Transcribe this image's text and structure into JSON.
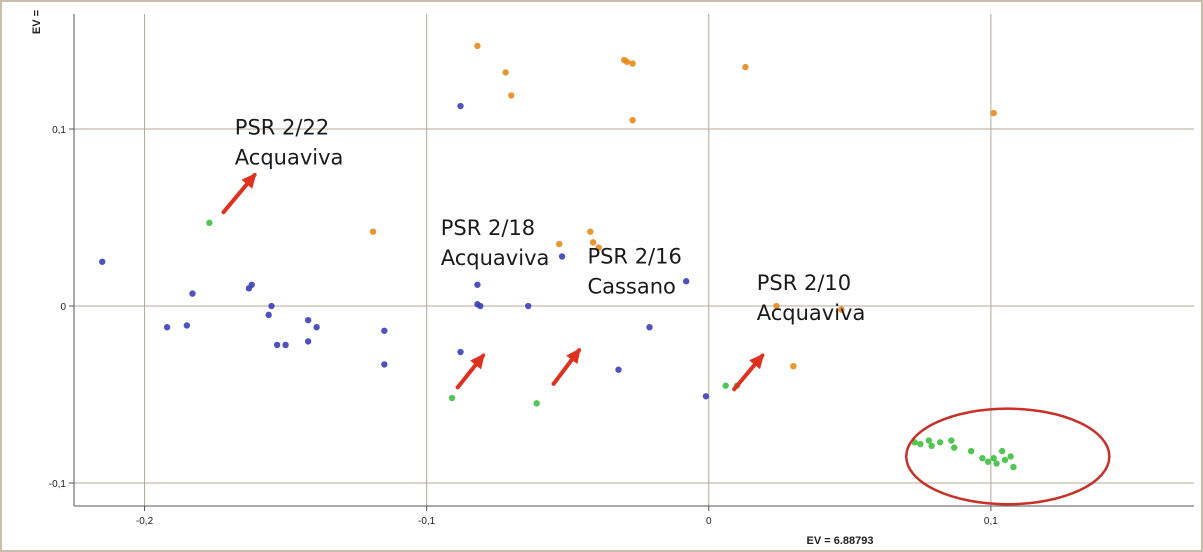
{
  "chart_data": {
    "type": "scatter",
    "title": "",
    "xlabel": "EV = 6.88793",
    "ylabel": "EV =",
    "xlim": [
      -0.225,
      0.172
    ],
    "ylim": [
      -0.113,
      0.165
    ],
    "xticks": [
      -0.2,
      -0.1,
      0,
      0.1
    ],
    "yticks": [
      -0.1,
      0,
      0.1
    ],
    "xtick_labels": [
      "-0,2",
      "-0,1",
      "0",
      "0,1"
    ],
    "ytick_labels": [
      "-0,1",
      "0",
      "0,1"
    ],
    "grid": true,
    "colors": {
      "blue": "#3b3fb8",
      "orange": "#e8891a",
      "green": "#3fbf3f",
      "arrow": "#e0301e",
      "ellipse": "#c8302a",
      "grid": "#b4a89a",
      "frame": "#c9bca8"
    },
    "series": [
      {
        "color": "blue",
        "points": [
          [
            -0.215,
            0.025
          ],
          [
            -0.192,
            -0.012
          ],
          [
            -0.185,
            -0.011
          ],
          [
            -0.183,
            0.007
          ],
          [
            -0.163,
            0.01
          ],
          [
            -0.162,
            0.012
          ],
          [
            -0.156,
            -0.005
          ],
          [
            -0.155,
            0.0
          ],
          [
            -0.153,
            -0.022
          ],
          [
            -0.15,
            -0.022
          ],
          [
            -0.142,
            -0.02
          ],
          [
            -0.142,
            -0.008
          ],
          [
            -0.139,
            -0.012
          ],
          [
            -0.115,
            -0.014
          ],
          [
            -0.115,
            -0.033
          ],
          [
            -0.088,
            0.113
          ],
          [
            -0.088,
            -0.026
          ],
          [
            -0.082,
            0.012
          ],
          [
            -0.082,
            0.001
          ],
          [
            -0.081,
            0.0
          ],
          [
            -0.064,
            0.0
          ],
          [
            -0.052,
            0.028
          ],
          [
            -0.032,
            -0.036
          ],
          [
            -0.021,
            -0.012
          ],
          [
            -0.008,
            0.014
          ],
          [
            -0.001,
            -0.051
          ]
        ]
      },
      {
        "color": "orange",
        "points": [
          [
            -0.082,
            0.147
          ],
          [
            -0.072,
            0.132
          ],
          [
            -0.07,
            0.119
          ],
          [
            -0.03,
            0.139
          ],
          [
            -0.029,
            0.138
          ],
          [
            -0.027,
            0.137
          ],
          [
            -0.027,
            0.105
          ],
          [
            0.013,
            0.135
          ],
          [
            0.101,
            0.109
          ],
          [
            -0.119,
            0.042
          ],
          [
            -0.053,
            0.035
          ],
          [
            -0.042,
            0.042
          ],
          [
            -0.041,
            0.036
          ],
          [
            -0.039,
            0.033
          ],
          [
            0.024,
            0.0
          ],
          [
            0.047,
            -0.002
          ],
          [
            0.03,
            -0.034
          ]
        ]
      },
      {
        "color": "green",
        "points": [
          [
            -0.177,
            0.047
          ],
          [
            -0.091,
            -0.052
          ],
          [
            -0.061,
            -0.055
          ],
          [
            0.006,
            -0.045
          ],
          [
            0.01,
            -0.045
          ],
          [
            0.073,
            -0.077
          ],
          [
            0.075,
            -0.078
          ],
          [
            0.078,
            -0.076
          ],
          [
            0.079,
            -0.079
          ],
          [
            0.082,
            -0.077
          ],
          [
            0.086,
            -0.076
          ],
          [
            0.087,
            -0.08
          ],
          [
            0.093,
            -0.082
          ],
          [
            0.097,
            -0.086
          ],
          [
            0.099,
            -0.088
          ],
          [
            0.101,
            -0.086
          ],
          [
            0.102,
            -0.089
          ],
          [
            0.104,
            -0.082
          ],
          [
            0.105,
            -0.087
          ],
          [
            0.107,
            -0.085
          ],
          [
            0.108,
            -0.091
          ]
        ]
      }
    ],
    "annotations": [
      {
        "lines": [
          "PSR 2/22",
          "Acquaviva"
        ],
        "text_at": [
          -0.168,
          0.097
        ],
        "arrow_from": [
          -0.172,
          0.053
        ],
        "arrow_to": [
          -0.161,
          0.074
        ]
      },
      {
        "lines": [
          "PSR 2/18",
          "Acquaviva"
        ],
        "text_at": [
          -0.095,
          0.04
        ],
        "arrow_from": [
          -0.089,
          -0.046
        ],
        "arrow_to": [
          -0.08,
          -0.028
        ]
      },
      {
        "lines": [
          "PSR 2/16",
          "Cassano"
        ],
        "text_at": [
          -0.043,
          0.024
        ],
        "arrow_from": [
          -0.055,
          -0.044
        ],
        "arrow_to": [
          -0.046,
          -0.025
        ]
      },
      {
        "lines": [
          "PSR 2/10",
          "Acquaviva"
        ],
        "text_at": [
          0.017,
          0.009
        ],
        "arrow_from": [
          0.009,
          -0.047
        ],
        "arrow_to": [
          0.019,
          -0.028
        ]
      }
    ],
    "highlight_ellipse": {
      "center": [
        0.106,
        -0.085
      ],
      "radii": [
        0.036,
        0.027
      ]
    }
  }
}
